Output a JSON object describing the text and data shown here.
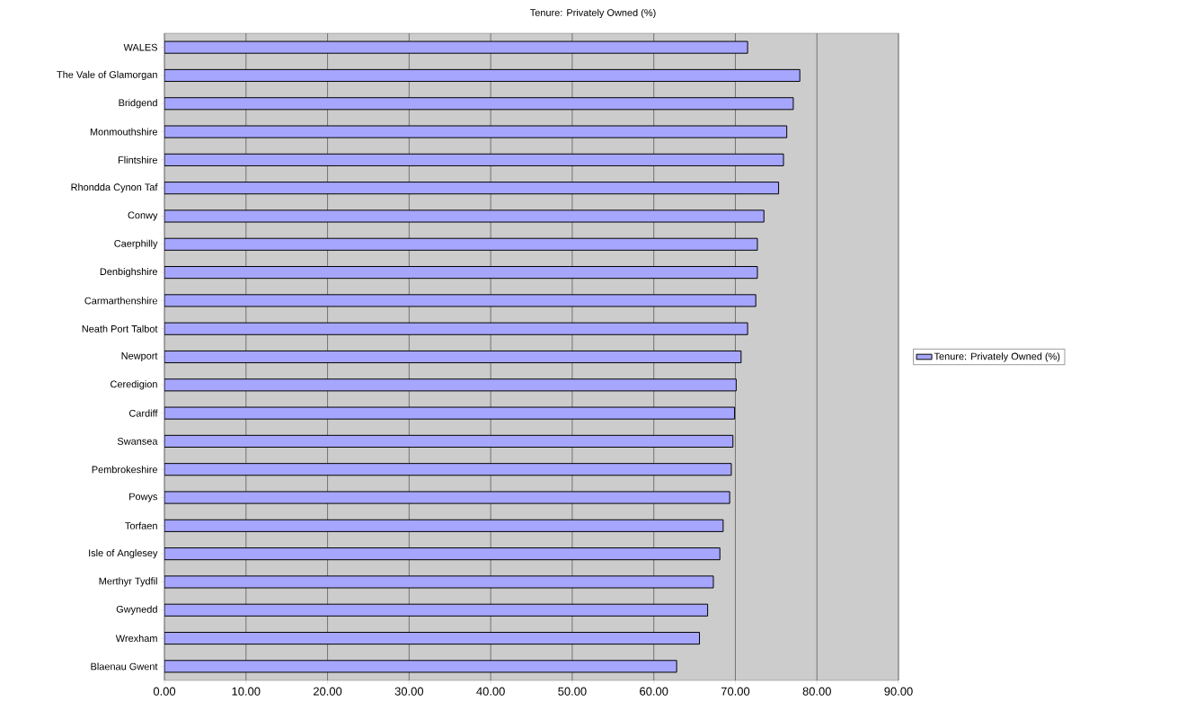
{
  "chart_data": {
    "type": "bar",
    "orientation": "horizontal",
    "title": "Tenure: Privately Owned (%)",
    "categories": [
      "WALES",
      "The Vale of Glamorgan",
      "Bridgend",
      "Monmouthshire",
      "Flintshire",
      "Rhondda Cynon Taf",
      "Conwy",
      "Caerphilly",
      "Denbighshire",
      "Carmarthenshire",
      "Neath Port Talbot",
      "Newport",
      "Ceredigion",
      "Cardiff",
      "Swansea",
      "Pembrokeshire",
      "Powys",
      "Torfaen",
      "Isle of Anglesey",
      "Merthyr Tydfil",
      "Gwynedd",
      "Wrexham",
      "Blaenau Gwent"
    ],
    "series": [
      {
        "name": "Tenure: Privately Owned (%)",
        "color": "#a6a6ff",
        "values": [
          71.5,
          77.9,
          77.1,
          76.3,
          75.9,
          75.3,
          73.5,
          72.7,
          72.7,
          72.5,
          71.5,
          70.7,
          70.1,
          69.9,
          69.7,
          69.5,
          69.3,
          68.5,
          68.1,
          67.3,
          66.6,
          65.6,
          62.8
        ]
      }
    ],
    "xlim": [
      0,
      90
    ],
    "xticks": [
      {
        "value": 0,
        "label": "0.00"
      },
      {
        "value": 10,
        "label": "10.00"
      },
      {
        "value": 20,
        "label": "20.00"
      },
      {
        "value": 30,
        "label": "30.00"
      },
      {
        "value": 40,
        "label": "40.00"
      },
      {
        "value": 50,
        "label": "50.00"
      },
      {
        "value": 60,
        "label": "60.00"
      },
      {
        "value": 70,
        "label": "70.00"
      },
      {
        "value": 80,
        "label": "80.00"
      },
      {
        "value": 90,
        "label": "90.00"
      }
    ],
    "grid": "x",
    "legend": "right"
  }
}
